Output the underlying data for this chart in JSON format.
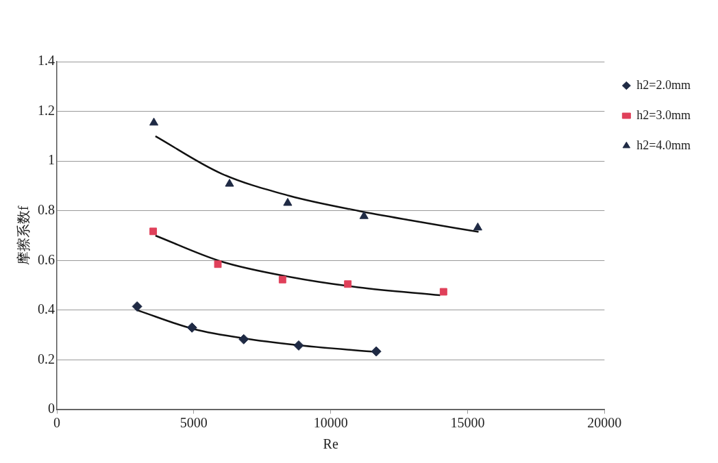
{
  "chart_data": {
    "type": "scatter",
    "xlabel": "Re",
    "ylabel": "摩擦系数f",
    "xlim": [
      0,
      20000
    ],
    "xticks": [
      0,
      5000,
      10000,
      15000,
      20000
    ],
    "ylim": [
      0,
      1.4
    ],
    "yticks": [
      0,
      0.2,
      0.4,
      0.6,
      0.8,
      1,
      1.2,
      1.4
    ],
    "grid": "y",
    "legend": "right",
    "series": [
      {
        "name": "h2=2.0mm",
        "color": "#1f2a44",
        "marker": "diamond",
        "x": [
          2930,
          4935,
          6824,
          8831,
          11665
        ],
        "values": [
          0.415,
          0.33,
          0.283,
          0.258,
          0.234
        ]
      },
      {
        "name": "h2=3.0mm",
        "color": "#e0405a",
        "marker": "square",
        "x": [
          3518,
          5880,
          8240,
          10626,
          14120
        ],
        "values": [
          0.717,
          0.585,
          0.523,
          0.505,
          0.474
        ]
      },
      {
        "name": "h2=4.0mm",
        "color": "#1f2a44",
        "marker": "triangle",
        "x": [
          3542,
          6305,
          8430,
          11216,
          15372
        ],
        "values": [
          1.154,
          0.908,
          0.831,
          0.778,
          0.732
        ]
      },
      {
        "type": "line",
        "color": "#111111",
        "marker": "none",
        "x": [
          2930,
          5000,
          7000,
          9000,
          11665
        ],
        "values": [
          0.4,
          0.324,
          0.284,
          0.257,
          0.232
        ]
      },
      {
        "type": "line",
        "color": "#111111",
        "marker": "none",
        "x": [
          3600,
          6000,
          8500,
          11000,
          14000
        ],
        "values": [
          0.7,
          0.596,
          0.534,
          0.492,
          0.46
        ]
      },
      {
        "type": "line",
        "color": "#111111",
        "marker": "none",
        "x": [
          3600,
          6000,
          8500,
          11000,
          13000,
          15400
        ],
        "values": [
          1.1,
          0.95,
          0.86,
          0.8,
          0.76,
          0.715
        ]
      }
    ]
  }
}
